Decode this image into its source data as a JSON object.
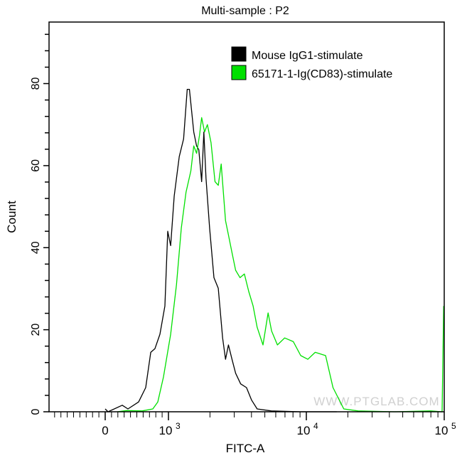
{
  "chart_data": {
    "type": "line",
    "title": "Multi-sample : P2",
    "xlabel": "FITC-A",
    "ylabel": "Count",
    "x_scale": "biexponential",
    "xlim": [
      -500,
      100000
    ],
    "ylim": [
      0,
      95
    ],
    "x_tick_labels": [
      {
        "value": 0,
        "base": "0",
        "exp": ""
      },
      {
        "value": 1000,
        "base": "10",
        "exp": "3"
      },
      {
        "value": 10000,
        "base": "10",
        "exp": "4"
      },
      {
        "value": 100000,
        "base": "10",
        "exp": "5"
      }
    ],
    "y_ticks": [
      0,
      20,
      40,
      60,
      80
    ],
    "grid": false,
    "legend_position": "top-right",
    "watermark": "WWW.PTGLAB.COM",
    "series": [
      {
        "name": "Mouse IgG1-stimulate",
        "color": "#000000",
        "x": [
          0,
          45,
          270,
          360,
          528,
          640,
          720,
          787,
          865,
          944,
          989,
          1037,
          1101,
          1198,
          1288,
          1368,
          1419,
          1453,
          1525,
          1600,
          1659,
          1741,
          1806,
          1871,
          1988,
          2137,
          2297,
          2470,
          2593,
          2722,
          2890,
          3069,
          3338,
          3679,
          4002,
          4400,
          5570,
          9100,
          16600
        ],
        "y": [
          0.7,
          0,
          1.6,
          0.7,
          2.4,
          5.9,
          14.5,
          15.4,
          18.9,
          25.8,
          44,
          40.5,
          52.6,
          62.2,
          66.5,
          78.6,
          78.6,
          75.2,
          68.2,
          64.8,
          63.9,
          56.1,
          68.2,
          57,
          44.8,
          32.7,
          30.1,
          18,
          12.8,
          16.3,
          12.8,
          9.4,
          6.8,
          5.9,
          2.9,
          0.7,
          0.2,
          0,
          0
        ]
      },
      {
        "name": "65171-1-Ig(CD83)-stimulate",
        "color": "#00e000",
        "x": [
          191,
          337,
          584,
          753,
          831,
          921,
          1037,
          1143,
          1239,
          1341,
          1453,
          1525,
          1600,
          1679,
          1741,
          1828,
          1917,
          2035,
          2175,
          2297,
          2413,
          2593,
          2722,
          2890,
          3069,
          3303,
          3553,
          3822,
          4110,
          4400,
          4850,
          5280,
          5600,
          6170,
          6960,
          8050,
          9100,
          10250,
          11600,
          13800,
          15600,
          18700,
          23700,
          43600,
          79500,
          96500,
          99000
        ],
        "y": [
          0,
          0.3,
          0.2,
          0.7,
          2.4,
          8.5,
          18.9,
          31,
          44.8,
          53.5,
          58.7,
          64.8,
          63,
          67.4,
          71.7,
          68.2,
          70,
          65.6,
          56.1,
          55.2,
          60.4,
          46.6,
          43.1,
          38.8,
          34.5,
          32.7,
          33.6,
          29.3,
          25.8,
          20.6,
          16.3,
          24.1,
          19.7,
          16.3,
          18,
          17.1,
          13.7,
          12.8,
          14.5,
          13.7,
          5.9,
          0.7,
          0.2,
          0,
          0.2,
          0,
          25.8
        ]
      }
    ]
  }
}
